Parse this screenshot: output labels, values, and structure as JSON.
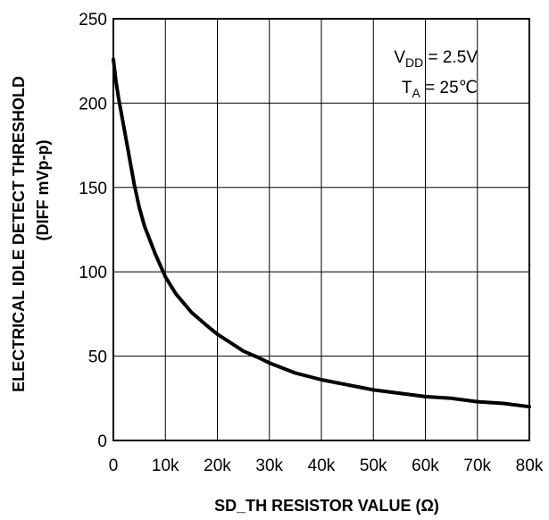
{
  "chart_data": {
    "type": "line",
    "title": "",
    "xlabel": "SD_TH RESISTOR VALUE (Ω)",
    "ylabel_line1": "ELECTRICAL IDLE DETECT THRESHOLD",
    "ylabel_line2": "(DIFF mVp-p)",
    "xlim": [
      0,
      80000
    ],
    "ylim": [
      0,
      250
    ],
    "x_ticks": [
      0,
      10000,
      20000,
      30000,
      40000,
      50000,
      60000,
      70000,
      80000
    ],
    "x_tick_labels": [
      "0",
      "10k",
      "20k",
      "30k",
      "40k",
      "50k",
      "60k",
      "70k",
      "80k"
    ],
    "y_ticks": [
      0,
      50,
      100,
      150,
      200,
      250
    ],
    "y_tick_labels": [
      "0",
      "50",
      "100",
      "150",
      "200",
      "250"
    ],
    "grid": true,
    "annotations": {
      "vdd_main": "V",
      "vdd_sub": "DD",
      "vdd_value": " = 2.5V",
      "ta_main": "T",
      "ta_sub": "A",
      "ta_value": " = 25℃"
    },
    "series": [
      {
        "color": "#000000",
        "x": [
          0,
          500,
          1000,
          2000,
          3000,
          4000,
          5000,
          6000,
          8000,
          10000,
          12000,
          15000,
          18000,
          20000,
          22000,
          25000,
          28000,
          30000,
          35000,
          40000,
          45000,
          50000,
          55000,
          60000,
          65000,
          70000,
          75000,
          80000
        ],
        "y": [
          226,
          213,
          203,
          186,
          169,
          152,
          138,
          127,
          111,
          97,
          87,
          76,
          68,
          63,
          59,
          53,
          49,
          46,
          40,
          36,
          33,
          30,
          28,
          26,
          25,
          23,
          22,
          20
        ]
      }
    ]
  }
}
